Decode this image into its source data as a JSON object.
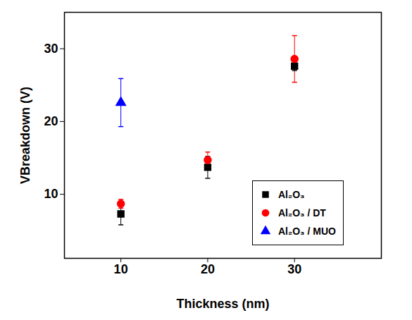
{
  "chart_data": {
    "type": "scatter",
    "x_label": "Thickness (nm)",
    "y_label": "VBreakdown (V)",
    "xlim": [
      3.5,
      40
    ],
    "xticks": [
      10,
      20,
      30
    ],
    "ylim": [
      1.2,
      35
    ],
    "yticks": [
      10,
      20,
      30
    ],
    "grid": false,
    "legend": "lower right",
    "series": [
      {
        "name": "Al₂O₃",
        "color": "#000000",
        "marker": "square",
        "x": [
          10,
          20,
          30
        ],
        "values": [
          7.3,
          13.7,
          27.6
        ],
        "errors": [
          1.5,
          1.5,
          0.6
        ]
      },
      {
        "name": "Al₂O₃ / DT",
        "color": "#ff0000",
        "marker": "circle",
        "x": [
          10,
          20,
          30
        ],
        "values": [
          8.7,
          14.7,
          28.6
        ],
        "errors": [
          0.6,
          1.1,
          3.2
        ]
      },
      {
        "name": "Al₂O₃ / MUO",
        "color": "#0000ff",
        "marker": "triangle",
        "x": [
          10
        ],
        "values": [
          22.6
        ],
        "errors": [
          3.3
        ]
      }
    ]
  }
}
